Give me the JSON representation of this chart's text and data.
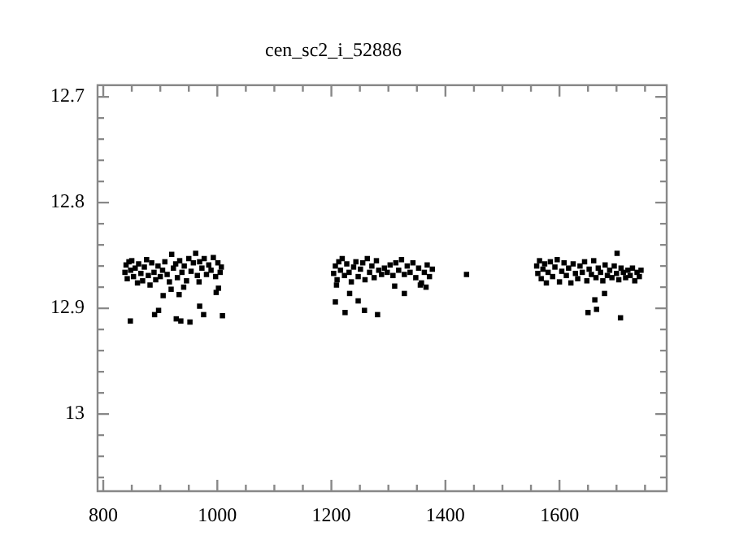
{
  "chart_data": {
    "type": "scatter",
    "title": "cen_sc2_i_52886",
    "marker": "square",
    "series": [
      {
        "color": "#000000",
        "x": [
          847.5,
          890,
          897,
          928,
          936,
          952,
          969,
          976,
          1009,
          998,
          1002,
          905,
          919,
          933,
          941,
          968,
          838,
          840,
          842,
          845,
          848,
          850,
          853,
          856,
          860,
          862,
          866,
          869,
          872,
          876,
          879,
          882,
          885,
          889,
          892,
          896,
          900,
          904,
          908,
          912,
          916,
          920,
          923,
          927,
          930,
          934,
          938,
          942,
          946,
          950,
          954,
          958,
          962,
          965,
          969,
          973,
          977,
          981,
          985,
          989,
          993,
          997,
          1001,
          1005,
          1007,
          1207,
          1224,
          1232,
          1247,
          1258,
          1281,
          1209,
          1311,
          1328,
          1356,
          1366,
          1204,
          1207,
          1210,
          1213,
          1216,
          1219,
          1223,
          1227,
          1231,
          1235,
          1239,
          1243,
          1247,
          1251,
          1255,
          1259,
          1263,
          1267,
          1271,
          1275,
          1279,
          1283,
          1288,
          1293,
          1298,
          1303,
          1308,
          1313,
          1318,
          1323,
          1328,
          1333,
          1338,
          1343,
          1348,
          1353,
          1358,
          1363,
          1368,
          1372,
          1377,
          1437,
          1650,
          1665,
          1662,
          1679,
          1707,
          1701,
          1560,
          1562,
          1565,
          1568,
          1571,
          1574,
          1577,
          1580,
          1584,
          1588,
          1592,
          1596,
          1600,
          1604,
          1608,
          1612,
          1616,
          1620,
          1624,
          1628,
          1632,
          1636,
          1640,
          1644,
          1648,
          1652,
          1656,
          1660,
          1664,
          1668,
          1672,
          1676,
          1680,
          1684,
          1688,
          1692,
          1696,
          1700,
          1704,
          1708,
          1712,
          1716,
          1720,
          1724,
          1728,
          1732,
          1736,
          1740,
          1743
        ],
        "values": [
          12.912,
          12.906,
          12.902,
          12.91,
          12.912,
          12.913,
          12.898,
          12.906,
          12.907,
          12.885,
          12.881,
          12.888,
          12.882,
          12.887,
          12.88,
          12.875,
          12.866,
          12.859,
          12.872,
          12.856,
          12.864,
          12.855,
          12.87,
          12.862,
          12.876,
          12.858,
          12.867,
          12.874,
          12.861,
          12.854,
          12.869,
          12.878,
          12.857,
          12.866,
          12.873,
          12.86,
          12.87,
          12.864,
          12.856,
          12.868,
          12.875,
          12.849,
          12.862,
          12.858,
          12.871,
          12.855,
          12.866,
          12.86,
          12.874,
          12.853,
          12.865,
          12.857,
          12.848,
          12.869,
          12.856,
          12.862,
          12.853,
          12.868,
          12.859,
          12.864,
          12.852,
          12.87,
          12.857,
          12.866,
          12.861,
          12.894,
          12.904,
          12.886,
          12.893,
          12.902,
          12.906,
          12.878,
          12.879,
          12.886,
          12.878,
          12.88,
          12.867,
          12.86,
          12.873,
          12.856,
          12.864,
          12.853,
          12.869,
          12.858,
          12.866,
          12.875,
          12.861,
          12.856,
          12.87,
          12.863,
          12.857,
          12.873,
          12.853,
          12.866,
          12.86,
          12.871,
          12.855,
          12.864,
          12.868,
          12.862,
          12.866,
          12.859,
          12.869,
          12.857,
          12.864,
          12.854,
          12.868,
          12.86,
          12.866,
          12.857,
          12.871,
          12.862,
          12.876,
          12.866,
          12.859,
          12.87,
          12.863,
          12.868,
          12.904,
          12.901,
          12.892,
          12.886,
          12.909,
          12.848,
          12.86,
          12.867,
          12.855,
          12.872,
          12.863,
          12.858,
          12.876,
          12.866,
          12.856,
          12.87,
          12.861,
          12.854,
          12.875,
          12.865,
          12.857,
          12.869,
          12.862,
          12.876,
          12.858,
          12.867,
          12.872,
          12.86,
          12.866,
          12.856,
          12.874,
          12.863,
          12.868,
          12.855,
          12.871,
          12.862,
          12.866,
          12.874,
          12.859,
          12.869,
          12.864,
          12.871,
          12.86,
          12.867,
          12.873,
          12.862,
          12.866,
          12.871,
          12.864,
          12.869,
          12.862,
          12.874,
          12.866,
          12.87,
          12.864
        ]
      }
    ],
    "xlim": [
      790,
      1788
    ],
    "ylim": [
      13.073,
      12.689
    ],
    "xticks": [
      800,
      {
        "value": 850,
        "label": null
      },
      {
        "value": 900,
        "label": null
      },
      {
        "value": 950,
        "label": null
      },
      1000,
      {
        "value": 1050,
        "label": null
      },
      {
        "value": 1100,
        "label": null
      },
      {
        "value": 1150,
        "label": null
      },
      1200,
      {
        "value": 1250,
        "label": null
      },
      {
        "value": 1300,
        "label": null
      },
      {
        "value": 1350,
        "label": null
      },
      1400,
      {
        "value": 1450,
        "label": null
      },
      {
        "value": 1500,
        "label": null
      },
      {
        "value": 1550,
        "label": null
      },
      1600,
      {
        "value": 1650,
        "label": null
      },
      {
        "value": 1700,
        "label": null
      },
      {
        "value": 1750,
        "label": null
      }
    ],
    "yticks": [
      12.7,
      {
        "value": 12.72,
        "label": null
      },
      {
        "value": 12.74,
        "label": null
      },
      {
        "value": 12.76,
        "label": null
      },
      {
        "value": 12.78,
        "label": null
      },
      12.8,
      {
        "value": 12.82,
        "label": null
      },
      {
        "value": 12.84,
        "label": null
      },
      {
        "value": 12.86,
        "label": null
      },
      {
        "value": 12.88,
        "label": null
      },
      12.9,
      {
        "value": 12.92,
        "label": null
      },
      {
        "value": 12.94,
        "label": null
      },
      {
        "value": 12.96,
        "label": null
      },
      {
        "value": 12.98,
        "label": null
      },
      13,
      {
        "value": 13.02,
        "label": null
      },
      {
        "value": 13.04,
        "label": null
      },
      {
        "value": 13.06,
        "label": null
      }
    ]
  }
}
